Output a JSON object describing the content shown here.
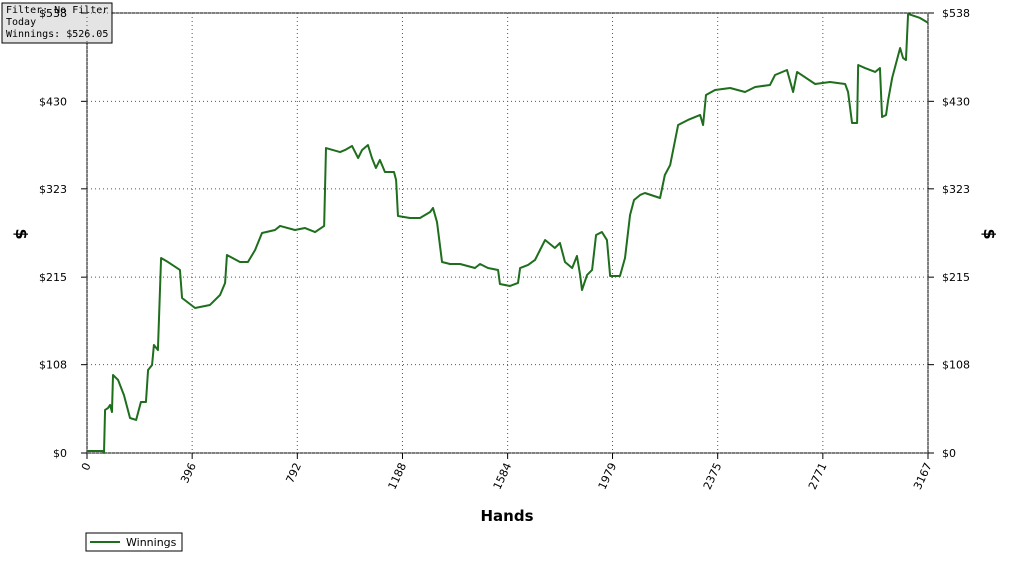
{
  "chart_data": {
    "type": "line",
    "annotations": [
      "Filter: No Filter",
      "Today",
      "Winnings: $526.05"
    ],
    "x_label": "Hands",
    "y_label": "$",
    "y2_label": "$",
    "xlim": [
      0,
      3167
    ],
    "xticks": [
      0,
      396,
      792,
      1188,
      1584,
      1979,
      2375,
      2771,
      3167
    ],
    "ylim": [
      0,
      538
    ],
    "yticks": [
      {
        "value": 0,
        "label": "$0"
      },
      {
        "value": 108,
        "label": "$108"
      },
      {
        "value": 215,
        "label": "$215"
      },
      {
        "value": 323,
        "label": "$323"
      },
      {
        "value": 430,
        "label": "$430"
      },
      {
        "value": 538,
        "label": "$538"
      }
    ],
    "grid": true,
    "x": [
      0,
      60,
      64,
      68,
      79,
      87,
      94,
      98,
      117,
      139,
      162,
      185,
      203,
      222,
      230,
      245,
      252,
      267,
      279,
      305,
      350,
      358,
      407,
      463,
      501,
      520,
      527,
      576,
      606,
      633,
      659,
      708,
      727,
      783,
      821,
      859,
      893,
      900,
      953,
      972,
      998,
      1021,
      1036,
      1058,
      1073,
      1088,
      1103,
      1122,
      1156,
      1164,
      1171,
      1216,
      1254,
      1292,
      1303,
      1318,
      1337,
      1367,
      1405,
      1461,
      1480,
      1510,
      1548,
      1555,
      1593,
      1623,
      1631,
      1661,
      1687,
      1706,
      1725,
      1762,
      1781,
      1800,
      1827,
      1845,
      1857,
      1864,
      1883,
      1902,
      1917,
      1939,
      1958,
      1970,
      2007,
      2026,
      2045,
      2060,
      2083,
      2101,
      2158,
      2176,
      2196,
      2226,
      2263,
      2309,
      2320,
      2331,
      2365,
      2422,
      2478,
      2516,
      2572,
      2591,
      2636,
      2659,
      2674,
      2742,
      2798,
      2855,
      2866,
      2881,
      2900,
      2904,
      2930,
      2968,
      2986,
      2994,
      3009,
      3017,
      3032,
      3062,
      3073,
      3084,
      3092,
      3137,
      3167
    ],
    "series": [
      {
        "name": "Winnings",
        "color": "#1e6e1e",
        "values": [
          2.4,
          2.4,
          0,
          52.6,
          55.0,
          58.7,
          50.1,
          95.4,
          89.3,
          70.9,
          42.8,
          40.4,
          62.4,
          62.4,
          101.5,
          107.6,
          132.1,
          125.9,
          238.4,
          233.5,
          223.8,
          189.5,
          177.3,
          181.0,
          193.2,
          207.9,
          242.1,
          233.5,
          233.5,
          248.2,
          269.0,
          272.7,
          277.6,
          272.7,
          275.1,
          270.2,
          277.6,
          372.9,
          368.0,
          370.5,
          375.4,
          360.7,
          370.5,
          376.6,
          360.7,
          348.5,
          358.3,
          343.6,
          343.6,
          333.8,
          289.8,
          287.3,
          287.3,
          294.7,
          299.6,
          282.4,
          233.5,
          231.1,
          231.1,
          226.2,
          231.1,
          226.2,
          223.8,
          206.6,
          204.2,
          207.9,
          226.2,
          229.9,
          236.0,
          248.2,
          260.4,
          250.7,
          256.8,
          233.5,
          226.2,
          240.9,
          217.6,
          199.3,
          217.6,
          223.8,
          266.5,
          270.2,
          260.4,
          216.4,
          216.4,
          238.4,
          291.0,
          309.3,
          315.5,
          317.9,
          311.8,
          339.9,
          352.1,
          401.0,
          407.2,
          413.3,
          401.0,
          437.7,
          443.8,
          446.3,
          441.4,
          447.5,
          450.0,
          462.2,
          468.3,
          441.4,
          465.9,
          451.2,
          453.6,
          451.2,
          441.4,
          403.5,
          403.5,
          474.4,
          470.7,
          465.9,
          470.7,
          410.8,
          413.3,
          431.6,
          458.5,
          495.2,
          483.0,
          480.5,
          536.8,
          531.9,
          526.05
        ]
      }
    ]
  }
}
